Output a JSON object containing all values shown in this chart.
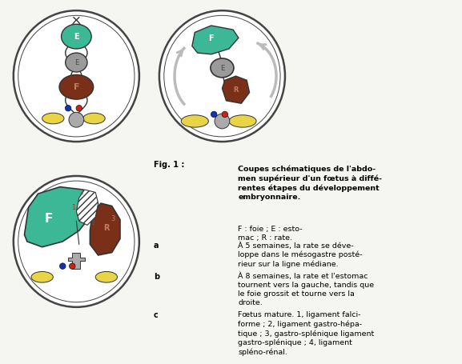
{
  "bg_color": "#f5f5f2",
  "fig_label": "Fig. 1 :",
  "title_bold": "Coupes schématiques de l'abdo-\nmen supérieur d'un fœtus à diffé-\nrentes étapes du développement\nembryonnaire.",
  "title_normal": " F : foie ; E : esto-\nmac ; R : rate.",
  "label_a": "a",
  "label_b": "b",
  "label_c": "c",
  "text_a": "À 5 semaines, la rate se déve-\nloppe dans le mésogastre posté-\nrieur sur la ligne médiane.",
  "text_b": "À 8 semaines, la rate et l'estomac\ntournent vers la gauche, tandis que\nle foie grossit et tourne vers la\ndroite.",
  "text_c": "Fœtus mature. 1, ligament falci-\nforme ; 2, ligament gastro-hépa-\ntique ; 3, gastro-splénique ligament\ngastro-splénique ; 4, ligament\nspléno-rénal.",
  "colors": {
    "liver_green": "#3cb896",
    "stomach_gray": "#9a9a9a",
    "spleen_brown": "#7a3018",
    "yellow": "#e8d444",
    "blue": "#1133bb",
    "red": "#cc2211",
    "outline": "#333333",
    "body_outline": "#444444",
    "arrow_gray": "#bbbbbb",
    "gray_struct": "#aaaaaa",
    "white": "#ffffff",
    "bg": "#f5f5f2"
  }
}
